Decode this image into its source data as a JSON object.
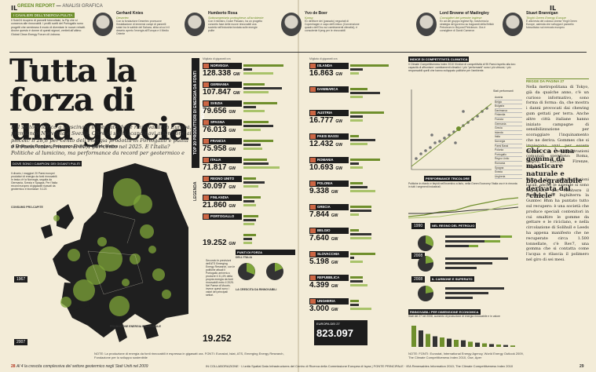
{
  "masthead": {
    "left_mark": "IL",
    "section": "GREEN REPORT",
    "section_sub": "ANALISI GRAFICA",
    "right_mark": "IL"
  },
  "strip": {
    "label": "I CAVALIERI DELL'ENERGIA PULITA",
    "intro": "Il Sole24 ricupero di pannelli fotovoltaici, la Ftp che si conserva alle rinnovabili. I profili scelti del Portogallo sono progetti che sembrano il modo di diventare le nuove retratti. Anche questo è donne di questi signori, vertieti all'ultimo Global Clean Energy Forum di Lisbona.",
    "people": [
      {
        "name": "Gerhard Knies",
        "role": "Desertec",
        "text": "Con la fondazione Desertec promuove l'installazione di immensi campi di pannelli solari tra le sabbie del Sahara, sfida al cui è il deserto aperto l'energia all'Europa e il Medio Oriente"
      },
      {
        "name": "Humberto Rosa",
        "role": "Sottosegretario portoghese all'ambiente",
        "text": "Con il ministro, Dulce Pássaro, ha un progetto concreto fase delle nuove rinnovabili una società nell'industria fondata sulle energie pulite"
      },
      {
        "name": "Yvo de Boer",
        "role": "Kpmg",
        "text": "Ex direttore dei (passato) negoziati di Copenhagen e capo dell'Unfccc (Convenzione quadro dell'Onu sui cambiamenti climatici), è consulente Kpmg per le rinnovabili"
      },
      {
        "name": "Lord Browne of Madingley",
        "role": "Consiglieri del premier inglese",
        "text": "Ex ad del gruppo inglese Bp, trasforma la strategia del governo su traguardi della British Petroleum in Beyond Petroleum. Ora è consigliere di David Cameron"
      },
      {
        "name": "Stuart Brannigan",
        "role": "Tinghi Green Energy Europe",
        "text": "È alla testa del colosso cinese Yingli Green Europe, azienda che sviluppa il pannello fotovoltaico sul mercato europeo"
      }
    ]
  },
  "headline": "Tutta la forza di una goccia",
  "standfirst": "È il settore idrico a trascinare il mercato delle rinnovabili in Europa, premiando Norvegia e Svezia. Oltre ai soliti scandinavi attenzione ai piccoli: il 28,8 per cento dell'energia prodotta in Portogallo è pulita e il Paese vale arrivare al 31,4 per cento nel 2025. E l'Italia? Politiche al lumicino, ma performance da record per geotermico e biomasse",
  "byline": "di Emanuele Bompan, Francesco Franchi · Davide Mottes",
  "map": {
    "label": "DOVE SONO I CAMPIONI DEI GIGANTI PULITI",
    "text": "Il divario, i maggiori 20 Paesi europei produttori di energia da fonti rinnovabili. In testa c'è la Norvegia, seguita da Germania, Svezia e Spagna. Per l'Italia record europeo di gigawatt ricavati da geotermico e biomasse: 5.123",
    "legend_title": "CONSUMO PRO-CAPITE",
    "year_a": "1967",
    "year_b": "2007",
    "production_label": "PRODUZIONE ENERGIA RINNOVABILE"
  },
  "vertical_title": "TOP 20 PRODUTTORI DI ENERGIA DA FONTI RINNOVABILI",
  "vertical_legend": "LEGENDA",
  "column_head": "Migliaia di gigawatt ora",
  "countries_left": [
    {
      "name": "NORVEGIA",
      "value": "128.338",
      "unit": "GW",
      "bars": [
        0.95,
        0.2,
        0.7
      ]
    },
    {
      "name": "GERMANIA",
      "value": "107.847",
      "unit": "GW",
      "bars": [
        0.5,
        0.9,
        0.6
      ]
    },
    {
      "name": "SVEZIA",
      "value": "79.656",
      "unit": "GW",
      "bars": [
        0.8,
        0.3,
        0.5
      ]
    },
    {
      "name": "SPAGNA",
      "value": "76.013",
      "unit": "GW",
      "bars": [
        0.6,
        0.7,
        0.4
      ]
    },
    {
      "name": "FRANCIA",
      "value": "75.958",
      "unit": "GW",
      "bars": [
        0.7,
        0.4,
        0.45
      ]
    },
    {
      "name": "ITALIA",
      "value": "71.817",
      "unit": "GW",
      "bars": [
        0.55,
        0.6,
        0.85
      ]
    },
    {
      "name": "REGNO UNITO",
      "value": "30.097",
      "unit": "GW",
      "bars": [
        0.3,
        0.5,
        0.35
      ]
    },
    {
      "name": "FINLANDIA",
      "value": "21.860",
      "unit": "GW",
      "bars": [
        0.4,
        0.25,
        0.3
      ]
    },
    {
      "name": "PORTOGALLO",
      "value": "",
      "unit": "",
      "bars": [
        0.35,
        0.3,
        0.25
      ]
    },
    {
      "name": "",
      "value": "19.252",
      "unit": "GW",
      "bars": [
        0.3,
        0.2,
        0.2
      ]
    }
  ],
  "countries_right": [
    {
      "name": "ISLANDA",
      "value": "16.863",
      "unit": "GW",
      "bars": [
        0.9,
        0.3,
        0.2
      ]
    },
    {
      "name": "DANIMARCA",
      "value": "",
      "unit": "",
      "bars": [
        0.4,
        0.7,
        0.3
      ]
    },
    {
      "name": "AUSTRIA",
      "value": "16.777",
      "unit": "GW",
      "bars": [
        0.8,
        0.3,
        0.3
      ]
    },
    {
      "name": "PAESI BASSI",
      "value": "12.432",
      "unit": "GW",
      "bars": [
        0.2,
        0.6,
        0.4
      ]
    },
    {
      "name": "ROMANIA",
      "value": "10.693",
      "unit": "GW",
      "bars": [
        0.7,
        0.2,
        0.3
      ]
    },
    {
      "name": "POLONIA",
      "value": "9.338",
      "unit": "GW",
      "bars": [
        0.3,
        0.4,
        0.6
      ]
    },
    {
      "name": "GRECIA",
      "value": "7.844",
      "unit": "GW",
      "bars": [
        0.5,
        0.5,
        0.2
      ]
    },
    {
      "name": "BELGIO",
      "value": "7.640",
      "unit": "GW",
      "bars": [
        0.2,
        0.5,
        0.5
      ]
    },
    {
      "name": "SLOVACCHIA",
      "value": "5.198",
      "unit": "GW",
      "bars": [
        0.6,
        0.1,
        0.3
      ]
    },
    {
      "name": "REPUBBLICA CECA",
      "value": "4.399",
      "unit": "GW",
      "bars": [
        0.3,
        0.3,
        0.4
      ]
    },
    {
      "name": "UNGHERIA",
      "value": "3.000",
      "unit": "GW",
      "bars": [
        0.2,
        0.2,
        0.5
      ]
    }
  ],
  "italy_box": {
    "title": "PUNTI DI FORZA",
    "subtitle": "DELL'ITALIA",
    "text": "Secondo le previsioni dell'ATS Emerging Energy Research, con le politiche attuali il Portogallo arriverà a produrre il 31,4% della propria energia da fonti rinnovabili entro il 2025. Nel Paese di Mourin, invece questi sono i valori dei principali settori.",
    "big_value": "19.252",
    "pie_title": "LA CRESCITA DA RINNOVABILI"
  },
  "eu_box": {
    "label": "EUROPA DEI 27",
    "value": "823.097",
    "unit": "GW"
  },
  "competitiveness": {
    "title": "INDICE DI COMPETITIVITÀ CLIMATICA",
    "text": "Il Climate Competitiveness Index 2010 Il Indice di competitività di 95 Paesi rispetto alla loro capacità di affrontare i cambiamenti climatici. I più \"performanti\" sono i più virtuosi, i più responsabili quelli che hanno sviluppato politiche per l'ambiente.",
    "axis_note": "Stati performanti",
    "countries": [
      "Austria",
      "Belgio",
      "Bulgaria",
      "Danimarca",
      "Finlandia",
      "Francia",
      "Germania",
      "Grecia",
      "Islanda",
      "Italia",
      "Norvegia",
      "Paesi Bassi",
      "Polonia",
      "Portogallo",
      "Regno Unito",
      "Romania",
      "Spagna",
      "Svezia",
      "Ungheria"
    ],
    "country_italia": "ITALIA"
  },
  "trend_panel": {
    "title": "PERFORMANCE TRICOLORE",
    "text": "Politiche in ritardo e tiepidi nell'incentivo a farlo, nella Green Economy l'Italia ora è in rimonta in tutti i segmenti industriali."
  },
  "petrol_panel": {
    "title": "NEL REGNO DEL PETROLIO",
    "year_a": "1990",
    "year_b": "2008"
  },
  "coal_panel": {
    "title": "IL CARBONE E SUPERATO",
    "year_a": "2008"
  },
  "renew_panel": {
    "title": "RINNOVABILI PER DIMENSIONE ECONOMICA",
    "text": "Stati dei 27 nel 2008, aumento di produzione di energia rinnovabile e in valore"
  },
  "sidebar": {
    "head": "REGGE DA PAGINA 27",
    "body": "Nella metropolitana di Tokyo, già da qualche anno, c'è un curioso informativo, sono forma di forma: da, che mostra i danni provocati dai chewing gum gettati per terra. Anche altre città italiane hanno iniziato campagne di sensibilizzazione per scoraggiare l'inquinamento che ne deriva. Gommes che si impiegano anni per essere rimossi, le amministrazioni comunali spendono: Roma, Napoli, Lecce, Firenze, Ragusa.",
    "subhead": "Chicca è una gomma da masticare naturale e biodegradabile derivata dal \"chicle\"",
    "body2": "Oltre alle amministrazioni locali, anche le aziende si sono impegnate per risolvere il problema. In Inghilterra la Gumtec Bhm ha puntato tutto sul recupero: è una società che produce speciali contenitori in cui smaltire le gomme da gettare e le riciclano, e nella circolazione di Solihull e Leeds ha appena manifesto che ne recuperate circa 1.500 tonnellate, c'è Rev7, una gomma che si contatta come l'acqua e rilascia il polimero nel giro di sei mesi."
  },
  "footnotes": {
    "left": "NOTE: La produzione di energia da fonti rinnovabili è espressa in gigawatt ora. FONTI: Eurostat, Istat, ATS, Emerging Energy Research, Fondazione per lo sviluppo sostenibile",
    "right": "NOTE: FONTI: Eurostat, International Energy Agency, World Energy Outlook 2009, The Climate Competitiveness Index 2010, Gse, Aper"
  },
  "folio": {
    "left_num": "28",
    "left_text": "Al 4 la crescita complessiva del settore geotermico negli Stati Uniti nel 2009",
    "center_text": "IN COLLABORAZIONE · L'unità Spatial Data Infrastructures del Centro di Ricerca della Commissione Europea di Ispra | FONTE PRINCIPALE · IEA Renewables Information 2010; The Climate Competitiveness Index 2010",
    "right_num": "29"
  },
  "colors": {
    "accent": "#6f8f2c",
    "dark": "#1d1d1d",
    "paper": "#f3ecd8",
    "red": "#b1341e"
  }
}
